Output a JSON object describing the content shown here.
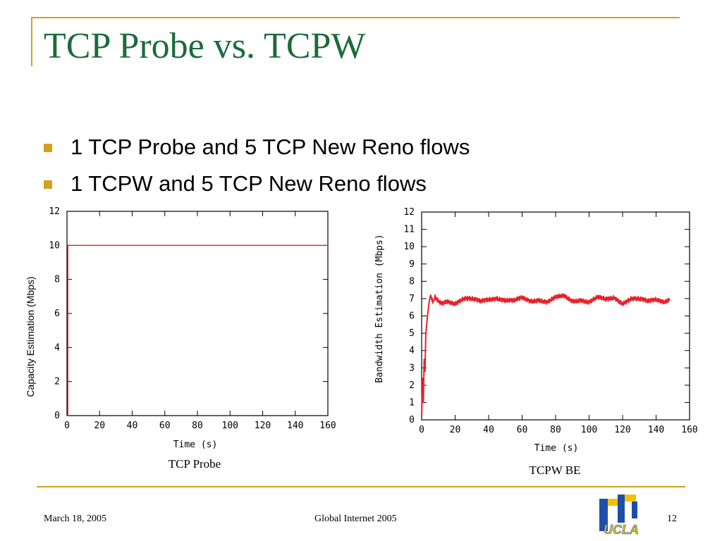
{
  "slide": {
    "title": "TCP Probe vs. TCPW",
    "bullets": [
      "1 TCP Probe and 5 TCP New Reno flows",
      "1 TCPW and 5 TCP New Reno flows"
    ],
    "footer": {
      "date": "March 18, 2005",
      "center": "Global Internet 2005",
      "page": "12"
    },
    "logo_text": "UCLA",
    "colors": {
      "accent": "#D3A21B",
      "title": "#1C6B3A",
      "series": "#E8212A"
    }
  },
  "chart_data": [
    {
      "type": "line",
      "caption": "TCP Probe",
      "xlabel": "Time (s)",
      "ylabel": "Capacity Estimation (Mbps)",
      "xlim": [
        0,
        160
      ],
      "ylim": [
        0,
        12
      ],
      "xticks": [
        0,
        20,
        40,
        60,
        80,
        100,
        120,
        140,
        160
      ],
      "yticks": [
        0,
        2,
        4,
        6,
        8,
        10,
        12
      ],
      "grid": false,
      "series": [
        {
          "x": [
            0,
            0.5,
            0.5,
            160
          ],
          "y": [
            0,
            0,
            10,
            10
          ]
        }
      ]
    },
    {
      "type": "line",
      "caption": "TCPW BE",
      "xlabel": "Time (s)",
      "ylabel": "Bandwidth Estimation (Mbps)",
      "xlim": [
        0,
        160
      ],
      "ylim": [
        0,
        12
      ],
      "xticks": [
        0,
        20,
        40,
        60,
        80,
        100,
        120,
        140,
        160
      ],
      "yticks": [
        0,
        1,
        2,
        3,
        4,
        5,
        6,
        7,
        8,
        9,
        10,
        11,
        12
      ],
      "grid": false,
      "series": [
        {
          "x": [
            0,
            0.5,
            1,
            1.5,
            2,
            2.5,
            3,
            3.5,
            4,
            4.5,
            5,
            5.5,
            6,
            7,
            8,
            10,
            12,
            15,
            20,
            25,
            30,
            35,
            40,
            45,
            50,
            55,
            60,
            65,
            70,
            75,
            80,
            85,
            90,
            95,
            100,
            105,
            110,
            115,
            120,
            125,
            130,
            135,
            140,
            145,
            148
          ],
          "y": [
            0.2,
            2.4,
            1.0,
            3.5,
            2.8,
            4.9,
            5.5,
            6.0,
            6.4,
            6.8,
            7.1,
            7.2,
            6.9,
            6.7,
            7.0,
            6.8,
            6.7,
            6.9,
            6.8,
            7.0,
            6.9,
            6.8,
            7.0,
            7.1,
            6.9,
            6.8,
            7.0,
            6.9,
            7.0,
            6.8,
            7.0,
            7.1,
            6.9,
            7.0,
            6.8,
            7.0,
            6.9,
            7.1,
            6.8,
            7.0,
            6.9,
            6.8,
            7.0,
            6.9,
            7.0
          ]
        }
      ]
    }
  ]
}
